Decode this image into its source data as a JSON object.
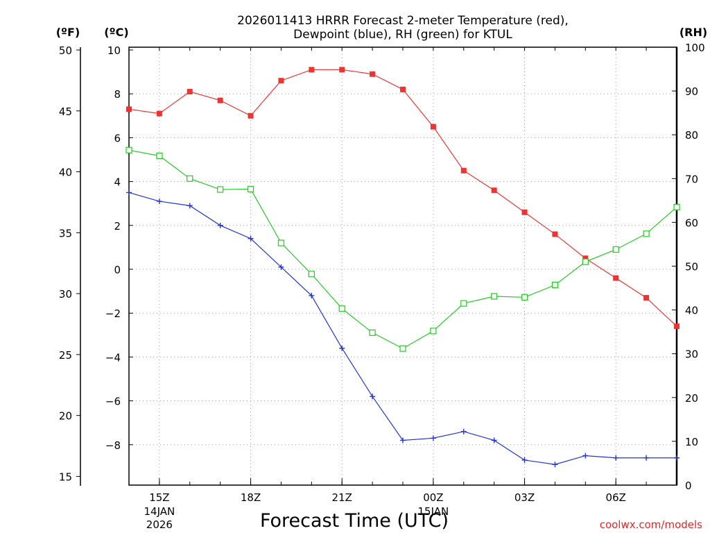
{
  "chart_data": {
    "type": "line",
    "title_lines": [
      "2026011413 HRRR Forecast 2-meter Temperature (red),",
      "Dewpoint (blue), RH (green) for KTUL"
    ],
    "xlabel": "Forecast Time (UTC)",
    "watermark": "coolwx.com/models",
    "unit_labels": {
      "f": "(ºF)",
      "c": "(ºC)",
      "rh": "(RH)"
    },
    "x_hours": [
      14,
      15,
      16,
      17,
      18,
      19,
      20,
      21,
      22,
      23,
      24,
      25,
      26,
      27,
      28,
      29,
      30,
      31,
      32
    ],
    "xlim": [
      14,
      32
    ],
    "x_ticks": [
      {
        "hour": 15,
        "label": "15Z",
        "date": "14JAN",
        "year": "2026"
      },
      {
        "hour": 18,
        "label": "18Z"
      },
      {
        "hour": 21,
        "label": "21Z"
      },
      {
        "hour": 24,
        "label": "00Z",
        "date": "15JAN"
      },
      {
        "hour": 27,
        "label": "03Z"
      },
      {
        "hour": 30,
        "label": "06Z"
      }
    ],
    "y_left_c": {
      "ylim": [
        -10,
        10
      ],
      "ticks": [
        "10",
        "8",
        "6",
        "4",
        "2",
        "0",
        "−2",
        "−4",
        "−6",
        "−8"
      ]
    },
    "y_left_f": {
      "ticks": [
        "50",
        "45",
        "40",
        "35",
        "30",
        "25",
        "20",
        "15"
      ]
    },
    "y_right_rh": {
      "ylim": [
        0,
        100
      ],
      "ticks": [
        "100",
        "90",
        "80",
        "70",
        "60",
        "50",
        "40",
        "30",
        "20",
        "10",
        "0"
      ]
    },
    "series": [
      {
        "name": "2-meter Temperature",
        "axis": "c",
        "color": "#ee3333",
        "marker": "filled-square",
        "values": [
          7.3,
          7.1,
          8.1,
          7.7,
          7.0,
          8.6,
          9.1,
          9.1,
          8.9,
          8.2,
          6.5,
          4.5,
          3.6,
          2.6,
          1.6,
          0.5,
          -0.4,
          -1.3,
          -2.6
        ]
      },
      {
        "name": "Dewpoint",
        "axis": "c",
        "color": "#2233dd",
        "marker": "plus",
        "values": [
          3.5,
          3.1,
          2.9,
          2.0,
          1.4,
          0.1,
          -1.2,
          -3.6,
          -5.8,
          -7.8,
          -7.7,
          -7.4,
          -7.8,
          -8.7,
          -8.9,
          -8.5,
          -8.6,
          -8.6,
          -8.6
        ]
      },
      {
        "name": "RH",
        "axis": "rh",
        "color": "#22cc22",
        "marker": "open-square",
        "values": [
          76.5,
          75.2,
          70.0,
          67.5,
          67.6,
          55.3,
          48.2,
          40.3,
          34.8,
          31.2,
          35.2,
          41.5,
          43.1,
          42.9,
          45.7,
          51.0,
          53.8,
          57.4,
          63.5
        ]
      }
    ]
  }
}
